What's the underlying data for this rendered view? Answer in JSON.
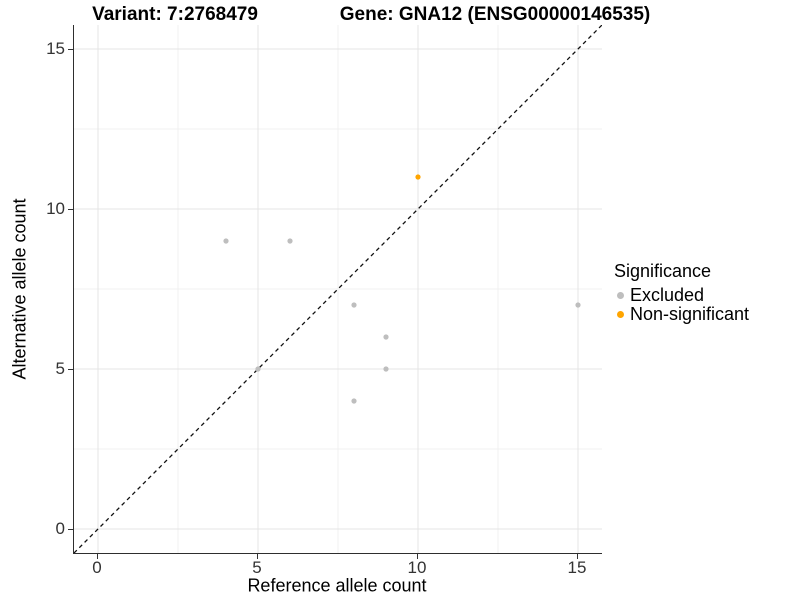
{
  "titles": {
    "variant": "Variant: 7:2768479",
    "gene": "Gene: GNA12 (ENSG00000146535)"
  },
  "legend": {
    "title": "Significance",
    "items": [
      {
        "label": "Excluded",
        "color": "#bebebe"
      },
      {
        "label": "Non-significant",
        "color": "#ffa500"
      }
    ]
  },
  "chart_data": {
    "type": "scatter",
    "title_left": "Variant: 7:2768479",
    "title_right": "Gene: GNA12 (ENSG00000146535)",
    "xlabel": "Reference allele count",
    "ylabel": "Alternative allele count",
    "xlim": [
      -0.75,
      15.75
    ],
    "ylim": [
      -0.75,
      15.75
    ],
    "major_ticks": [
      0,
      5,
      10,
      15
    ],
    "minor_ticks": [
      2.5,
      7.5,
      12.5
    ],
    "grid": "major+minor",
    "legend_title": "Significance",
    "legend_position": "right",
    "identity_line": {
      "style": "dashed",
      "equation": "y = x",
      "color": "#111111"
    },
    "series": [
      {
        "name": "Excluded",
        "color": "#bebebe",
        "points": [
          [
            4,
            9
          ],
          [
            5,
            5
          ],
          [
            6,
            9
          ],
          [
            8,
            4
          ],
          [
            8,
            7
          ],
          [
            9,
            5
          ],
          [
            9,
            6
          ],
          [
            15,
            7
          ]
        ]
      },
      {
        "name": "Non-significant",
        "color": "#ffa500",
        "points": [
          [
            10,
            11
          ]
        ]
      }
    ],
    "colors": {
      "grid_major": "#e4e4e4",
      "grid_minor": "#f1f1f1",
      "axis_line": "#333333",
      "tick_text": "#333333"
    }
  }
}
